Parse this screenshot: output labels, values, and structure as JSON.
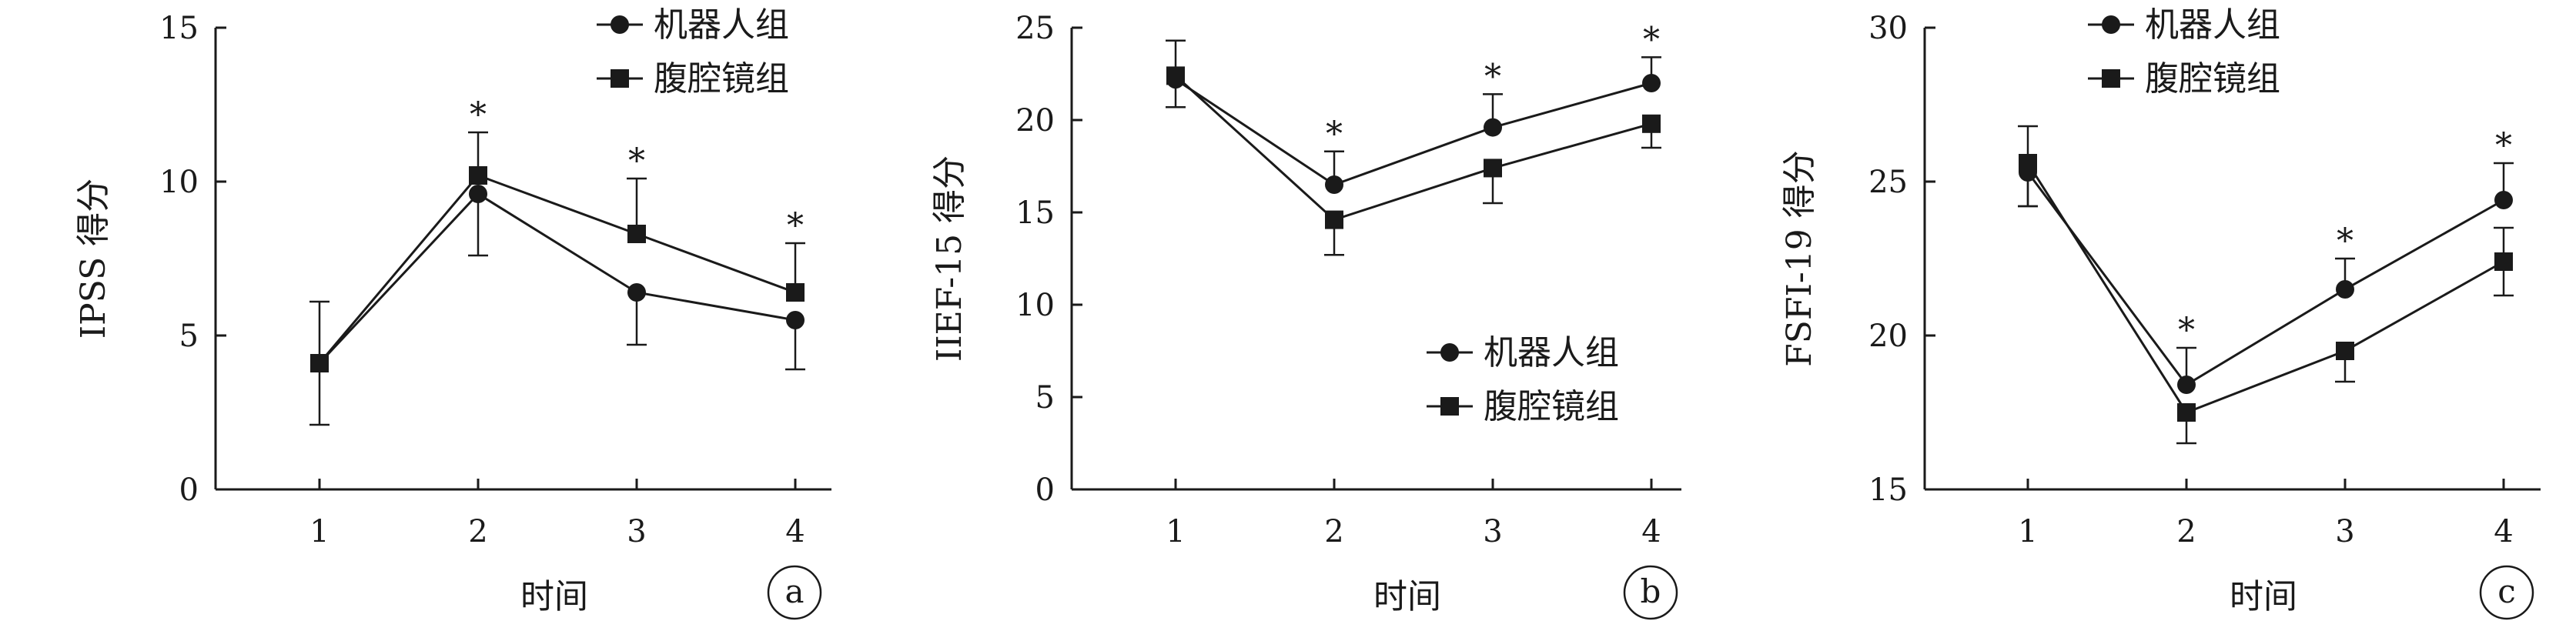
{
  "chart_data": [
    {
      "type": "line",
      "panel_label": "a",
      "categories": [
        "1",
        "2",
        "3",
        "4"
      ],
      "xlabel": "时间",
      "ylabel": "IPSS 得分",
      "ylim": [
        0,
        15
      ],
      "yticks": [
        0,
        5,
        10,
        15
      ],
      "legend_position": "top-right",
      "series": [
        {
          "name": "机器人组",
          "marker": "circle",
          "values": [
            4.1,
            9.6,
            6.4,
            5.5
          ],
          "err_minus": [
            2.0,
            2.0,
            1.7,
            1.6
          ],
          "err_plus": [
            2.0,
            0,
            0,
            0
          ]
        },
        {
          "name": "腹腔镜组",
          "marker": "square",
          "values": [
            4.1,
            10.2,
            8.3,
            6.4
          ],
          "err_minus": [
            0,
            0,
            0,
            0
          ],
          "err_plus": [
            0,
            1.4,
            1.8,
            1.6
          ]
        }
      ],
      "significance": [
        "",
        "*",
        "*",
        "*"
      ]
    },
    {
      "type": "line",
      "panel_label": "b",
      "categories": [
        "1",
        "2",
        "3",
        "4"
      ],
      "xlabel": "时间",
      "ylabel": "IIEF-15 得分",
      "ylim": [
        0,
        25
      ],
      "yticks": [
        0,
        5,
        10,
        15,
        20,
        25
      ],
      "legend_position": "center-right",
      "series": [
        {
          "name": "机器人组",
          "marker": "circle",
          "values": [
            22.2,
            16.5,
            19.6,
            22.0
          ],
          "err_minus": [
            0,
            0,
            0,
            0
          ],
          "err_plus": [
            2.1,
            1.8,
            1.8,
            1.4
          ]
        },
        {
          "name": "腹腔镜组",
          "marker": "square",
          "values": [
            22.4,
            14.6,
            17.4,
            19.8
          ],
          "err_minus": [
            1.7,
            1.9,
            1.9,
            1.3
          ],
          "err_plus": [
            0,
            0,
            0,
            0
          ]
        }
      ],
      "significance": [
        "",
        "*",
        "*",
        "*"
      ]
    },
    {
      "type": "line",
      "panel_label": "c",
      "categories": [
        "1",
        "2",
        "3",
        "4"
      ],
      "xlabel": "时间",
      "ylabel": "FSFI-19 得分",
      "ylim": [
        15,
        30
      ],
      "yticks": [
        15,
        20,
        25,
        30
      ],
      "legend_position": "top-right",
      "series": [
        {
          "name": "机器人组",
          "marker": "circle",
          "values": [
            25.3,
            18.4,
            21.5,
            24.4
          ],
          "err_minus": [
            1.1,
            0,
            0,
            0
          ],
          "err_plus": [
            1.5,
            1.2,
            1.0,
            1.2
          ]
        },
        {
          "name": "腹腔镜组",
          "marker": "square",
          "values": [
            25.6,
            17.5,
            19.5,
            22.4
          ],
          "err_minus": [
            1.4,
            1.0,
            1.0,
            1.1
          ],
          "err_plus": [
            0,
            0,
            0,
            1.1
          ]
        }
      ],
      "significance": [
        "",
        "*",
        "*",
        "*"
      ]
    }
  ]
}
